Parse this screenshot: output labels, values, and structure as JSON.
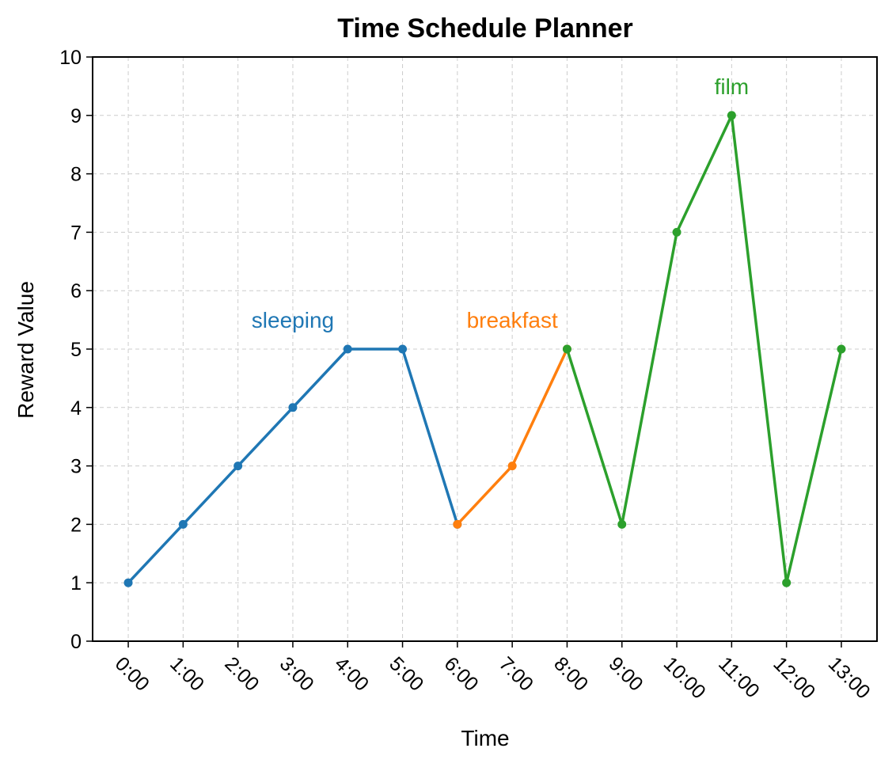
{
  "chart_data": {
    "type": "line",
    "title": "Time Schedule Planner",
    "xlabel": "Time",
    "ylabel": "Reward Value",
    "ylim": [
      0,
      10
    ],
    "yticks": [
      0,
      1,
      2,
      3,
      4,
      5,
      6,
      7,
      8,
      9,
      10
    ],
    "categories": [
      "0:00",
      "1:00",
      "2:00",
      "3:00",
      "4:00",
      "5:00",
      "6:00",
      "7:00",
      "8:00",
      "9:00",
      "10:00",
      "11:00",
      "12:00",
      "13:00"
    ],
    "grid": true,
    "series": [
      {
        "name": "sleeping",
        "color": "#1f77b4",
        "x": [
          0,
          1,
          2,
          3,
          4,
          5,
          6
        ],
        "y": [
          1,
          2,
          3,
          4,
          5,
          5,
          2
        ]
      },
      {
        "name": "breakfast",
        "color": "#ff7f0e",
        "x": [
          6,
          7,
          8
        ],
        "y": [
          2,
          3,
          5
        ]
      },
      {
        "name": "film",
        "color": "#2ca02c",
        "x": [
          8,
          9,
          10,
          11,
          12,
          13
        ],
        "y": [
          5,
          2,
          7,
          9,
          1,
          5
        ]
      }
    ],
    "annotations": [
      {
        "text": "sleeping",
        "x": 3,
        "y": 5.5,
        "color": "#1f77b4"
      },
      {
        "text": "breakfast",
        "x": 7,
        "y": 5.5,
        "color": "#ff7f0e"
      },
      {
        "text": "film",
        "x": 11,
        "y": 9.5,
        "color": "#2ca02c"
      }
    ]
  }
}
